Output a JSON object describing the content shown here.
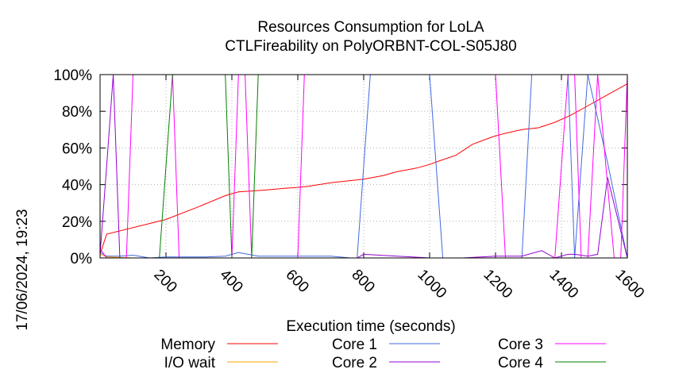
{
  "chart_data": {
    "type": "line",
    "title": "Resources Consumption for LoLA",
    "subtitle": "CTLFireability on PolyORBNT-COL-S05J80",
    "xlabel": "Execution time (seconds)",
    "ylabel": "",
    "side_label": "17/06/2024, 19:23",
    "xlim": [
      0,
      1600
    ],
    "ylim": [
      0,
      100
    ],
    "x_ticks": [
      200,
      400,
      600,
      800,
      1000,
      1200,
      1400,
      1600
    ],
    "y_ticks": [
      0,
      20,
      40,
      60,
      80,
      100
    ],
    "y_tick_labels": [
      "0%",
      "20%",
      "40%",
      "60%",
      "80%",
      "100%"
    ],
    "grid": true,
    "legend_position": "bottom",
    "series": [
      {
        "name": "Memory",
        "color": "#ff0000",
        "x": [
          0,
          20,
          200,
          300,
          380,
          420,
          500,
          560,
          600,
          630,
          700,
          800,
          860,
          900,
          960,
          1000,
          1030,
          1080,
          1130,
          1190,
          1230,
          1280,
          1330,
          1380,
          1430,
          1490,
          1540,
          1580,
          1600
        ],
        "y": [
          2,
          13,
          21,
          28,
          34,
          36,
          37,
          38,
          38.5,
          39,
          41,
          43,
          45,
          47,
          49,
          51,
          53,
          56,
          62,
          66,
          68,
          70,
          71,
          74,
          78,
          84,
          89,
          93,
          95
        ]
      },
      {
        "name": "I/O wait",
        "color": "#ffa500",
        "x": [
          0,
          20,
          100,
          200,
          400,
          600,
          800,
          1000,
          1200,
          1400,
          1600
        ],
        "y": [
          2,
          0.5,
          0,
          0,
          0,
          0,
          0,
          0,
          0,
          0,
          0
        ]
      },
      {
        "name": "Core 1",
        "color": "#4169e1",
        "x": [
          0,
          20,
          60,
          100,
          150,
          200,
          260,
          320,
          380,
          420,
          480,
          540,
          600,
          700,
          760,
          780,
          820,
          880,
          940,
          1000,
          1040,
          1100,
          1160,
          1220,
          1280,
          1310,
          1340,
          1380,
          1420,
          1440,
          1480,
          1540,
          1600
        ],
        "y": [
          3,
          1,
          1,
          1.5,
          0,
          0.5,
          0.5,
          0.5,
          1,
          3,
          1,
          1,
          1,
          1,
          0,
          0,
          100,
          100,
          100,
          100,
          0,
          0,
          0,
          0,
          0,
          100,
          100,
          100,
          100,
          0,
          100,
          52,
          0
        ]
      },
      {
        "name": "Core 2",
        "color": "#9400d3",
        "x": [
          0,
          20,
          40,
          60,
          100,
          160,
          200,
          300,
          400,
          500,
          600,
          700,
          780,
          800,
          900,
          1000,
          1100,
          1200,
          1280,
          1340,
          1380,
          1420,
          1440,
          1480,
          1510,
          1540,
          1600
        ],
        "y": [
          2,
          50,
          100,
          0,
          0,
          0,
          0,
          0,
          0,
          0,
          0,
          0,
          0,
          2,
          1,
          0,
          0,
          1,
          1,
          4,
          0,
          2,
          2,
          1,
          2,
          44,
          0
        ]
      },
      {
        "name": "Core 3",
        "color": "#ff00ff",
        "x": [
          0,
          20,
          80,
          100,
          160,
          200,
          220,
          240,
          400,
          420,
          440,
          460,
          480,
          600,
          620,
          640,
          800,
          1000,
          1200,
          1230,
          1250,
          1290,
          1380,
          1420,
          1440,
          1460,
          1480,
          1510,
          1560,
          1580,
          1600
        ],
        "y": [
          5,
          0,
          0,
          100,
          100,
          100,
          100,
          0,
          0,
          100,
          100,
          0,
          0,
          0,
          100,
          100,
          100,
          100,
          100,
          0,
          0,
          0,
          0,
          100,
          100,
          0,
          0,
          100,
          0,
          0,
          100
        ]
      },
      {
        "name": "Core 4",
        "color": "#008000",
        "x": [
          0,
          20,
          160,
          180,
          200,
          220,
          360,
          380,
          400,
          460,
          480,
          600,
          800,
          1000,
          1200,
          1300,
          1340,
          1380,
          1400,
          1440,
          1480,
          1600
        ],
        "y": [
          0,
          0,
          0,
          0,
          50,
          100,
          100,
          100,
          0,
          0,
          100,
          100,
          100,
          100,
          100,
          100,
          100,
          100,
          100,
          100,
          100,
          100
        ]
      }
    ]
  }
}
